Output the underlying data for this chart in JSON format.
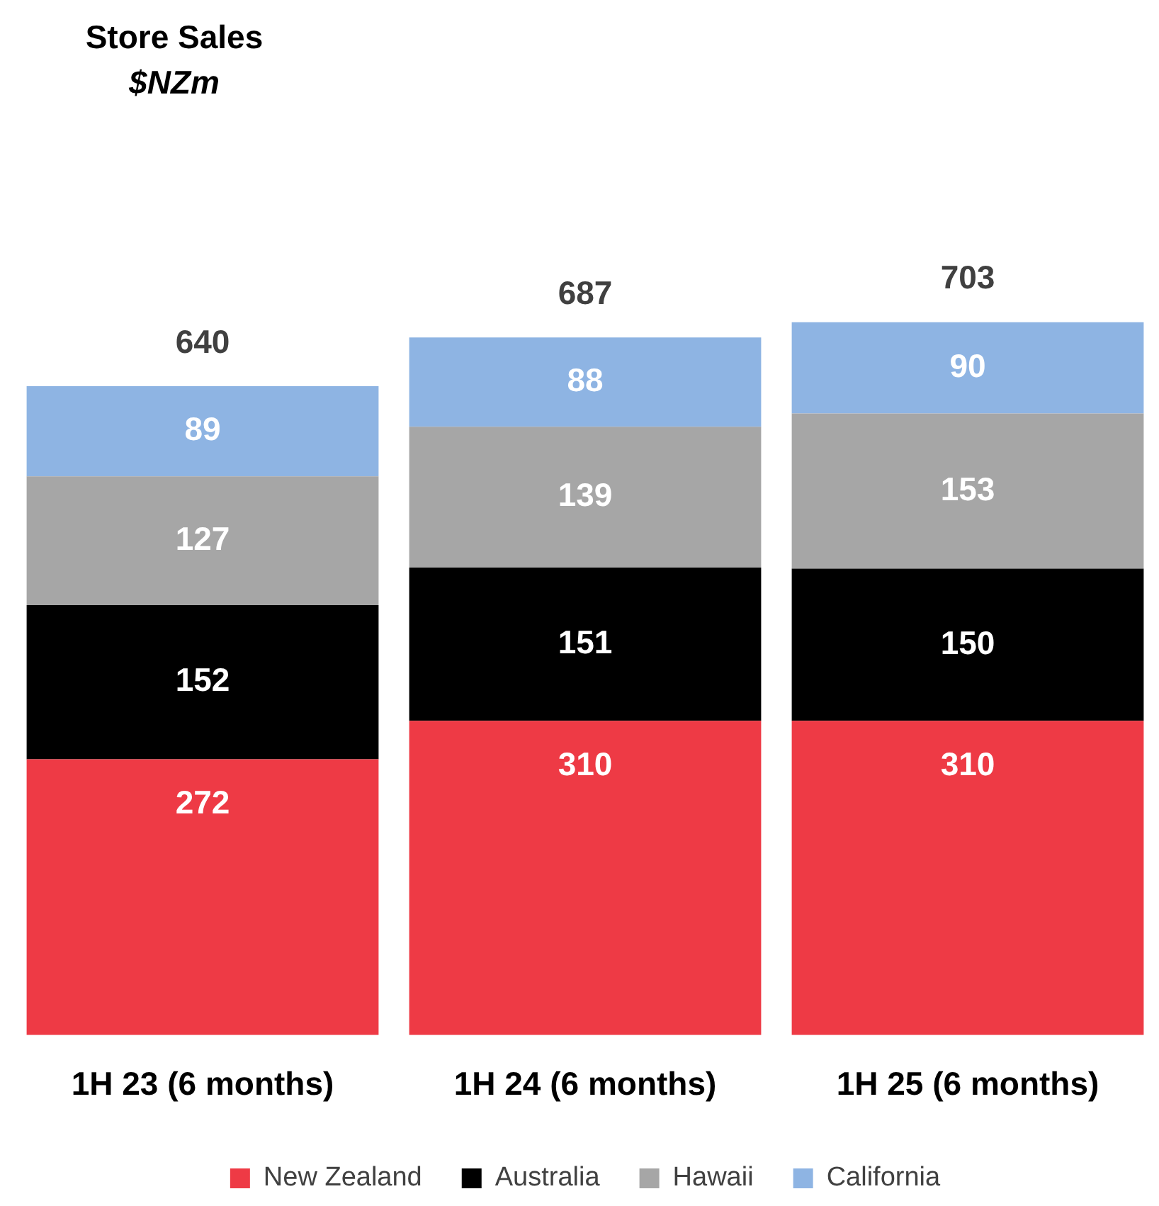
{
  "chart_data": {
    "type": "bar",
    "title": "Store Sales",
    "subtitle": "$NZm",
    "categories": [
      "1H 23 (6 months)",
      "1H 24 (6 months)",
      "1H 25 (6 months)"
    ],
    "stacked": true,
    "data_labels": true,
    "legend": "bottom",
    "totals": [
      "640",
      "687",
      "703"
    ],
    "series": [
      {
        "name": "New Zealand",
        "color": "#ee3a45",
        "values": [
          272,
          310,
          310
        ]
      },
      {
        "name": "Australia",
        "color": "#000000",
        "values": [
          152,
          151,
          150
        ]
      },
      {
        "name": "Hawaii",
        "color": "#a6a6a6",
        "values": [
          127,
          139,
          153
        ]
      },
      {
        "name": "California",
        "color": "#8eb4e3",
        "values": [
          89,
          88,
          90
        ]
      }
    ]
  }
}
